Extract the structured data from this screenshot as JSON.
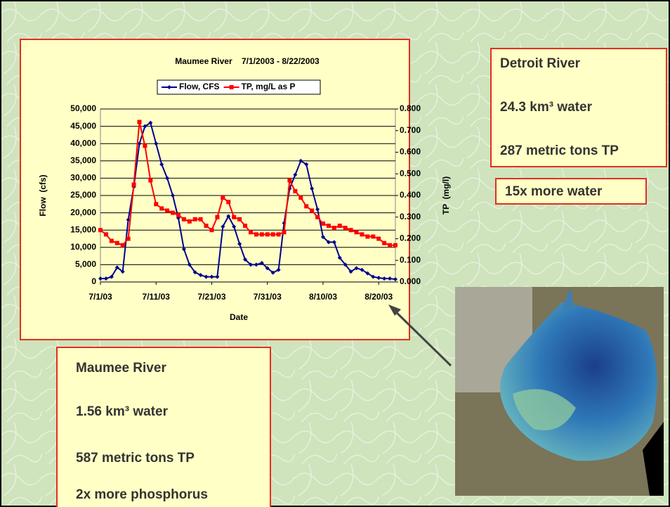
{
  "chart_data": {
    "type": "line",
    "title": "Maumee River    7/1/2003 - 8/22/2003",
    "x_label": "Date",
    "y_label": "Flow  (cfs)",
    "y2_label": "TP  (mg/l)",
    "x": [
      "7/1/03",
      "7/2/03",
      "7/3/03",
      "7/4/03",
      "7/5/03",
      "7/6/03",
      "7/7/03",
      "7/8/03",
      "7/9/03",
      "7/10/03",
      "7/11/03",
      "7/12/03",
      "7/13/03",
      "7/14/03",
      "7/15/03",
      "7/16/03",
      "7/17/03",
      "7/18/03",
      "7/19/03",
      "7/20/03",
      "7/21/03",
      "7/22/03",
      "7/23/03",
      "7/24/03",
      "7/25/03",
      "7/26/03",
      "7/27/03",
      "7/28/03",
      "7/29/03",
      "7/30/03",
      "7/31/03",
      "8/1/03",
      "8/2/03",
      "8/3/03",
      "8/4/03",
      "8/5/03",
      "8/6/03",
      "8/7/03",
      "8/8/03",
      "8/9/03",
      "8/10/03",
      "8/11/03",
      "8/12/03",
      "8/13/03",
      "8/14/03",
      "8/15/03",
      "8/16/03",
      "8/17/03",
      "8/18/03",
      "8/19/03",
      "8/20/03",
      "8/21/03",
      "8/22/03",
      "8/23/03"
    ],
    "xlim": [
      "7/1/03",
      "8/23/03"
    ],
    "xticks": [
      "7/1/03",
      "7/11/03",
      "7/21/03",
      "7/31/03",
      "8/10/03",
      "8/20/03"
    ],
    "ylim": [
      0,
      50000
    ],
    "yticks": [
      0,
      {
        "value": 5000,
        "label": "5,000"
      },
      {
        "value": 10000,
        "label": "10,000"
      },
      {
        "value": 15000,
        "label": "15,000"
      },
      {
        "value": 20000,
        "label": "20,000"
      },
      {
        "value": 25000,
        "label": "25,000"
      },
      {
        "value": 30000,
        "label": "30,000"
      },
      {
        "value": 35000,
        "label": "35,000"
      },
      {
        "value": 40000,
        "label": "40,000"
      },
      {
        "value": 45000,
        "label": "45,000"
      },
      {
        "value": 50000,
        "label": "50,000"
      }
    ],
    "y2lim": [
      0,
      0.8
    ],
    "y2ticks": [
      {
        "value": 0,
        "label": "0.000"
      },
      {
        "value": 0.1,
        "label": "0.100"
      },
      {
        "value": 0.2,
        "label": "0.200"
      },
      {
        "value": 0.3,
        "label": "0.300"
      },
      {
        "value": 0.4,
        "label": "0.400"
      },
      {
        "value": 0.5,
        "label": "0.500"
      },
      {
        "value": 0.6,
        "label": "0.600"
      },
      {
        "value": 0.7,
        "label": "0.700"
      },
      {
        "value": 0.8,
        "label": "0.800"
      }
    ],
    "grid": true,
    "legend": "top",
    "series": [
      {
        "name": "Flow, CFS",
        "color": "#000090",
        "marker": "diamond",
        "values": [
          1000,
          1000,
          1500,
          4200,
          3000,
          18000,
          27500,
          40000,
          45000,
          46000,
          40000,
          34000,
          30000,
          25000,
          18500,
          9500,
          5000,
          2800,
          2000,
          1500,
          1500,
          1500,
          16000,
          19000,
          16000,
          11000,
          6500,
          5000,
          5000,
          5500,
          4000,
          2700,
          3500,
          17000,
          27000,
          31000,
          35000,
          34000,
          27000,
          21000,
          13000,
          11500,
          11500,
          7000,
          5000,
          3000,
          4000,
          3500,
          2500,
          1500,
          1200,
          1000,
          1000,
          800
        ]
      },
      {
        "name": "TP, mg/L as P",
        "color": "#ff0000",
        "marker": "square",
        "axis": "y2",
        "values": [
          0.24,
          0.22,
          0.19,
          0.18,
          0.17,
          0.2,
          0.45,
          0.74,
          0.63,
          0.47,
          0.36,
          0.34,
          0.33,
          0.32,
          0.31,
          0.29,
          0.28,
          0.29,
          0.29,
          0.26,
          0.24,
          0.3,
          0.39,
          0.37,
          0.3,
          0.29,
          0.26,
          0.23,
          0.22,
          0.22,
          0.22,
          0.22,
          0.22,
          0.23,
          0.47,
          0.42,
          0.39,
          0.35,
          0.33,
          0.3,
          0.27,
          0.26,
          0.25,
          0.26,
          0.25,
          0.24,
          0.23,
          0.22,
          0.21,
          0.21,
          0.2,
          0.18,
          0.17,
          0.17
        ]
      }
    ]
  },
  "detroit": {
    "title": "Detroit River",
    "water": "24.3 km³ water",
    "tp": "287 metric tons TP",
    "note": "15x more water"
  },
  "maumee": {
    "title": "Maumee River",
    "water": "1.56 km³ water",
    "tp": "587 metric tons TP",
    "note": "2x more phosphorus"
  }
}
